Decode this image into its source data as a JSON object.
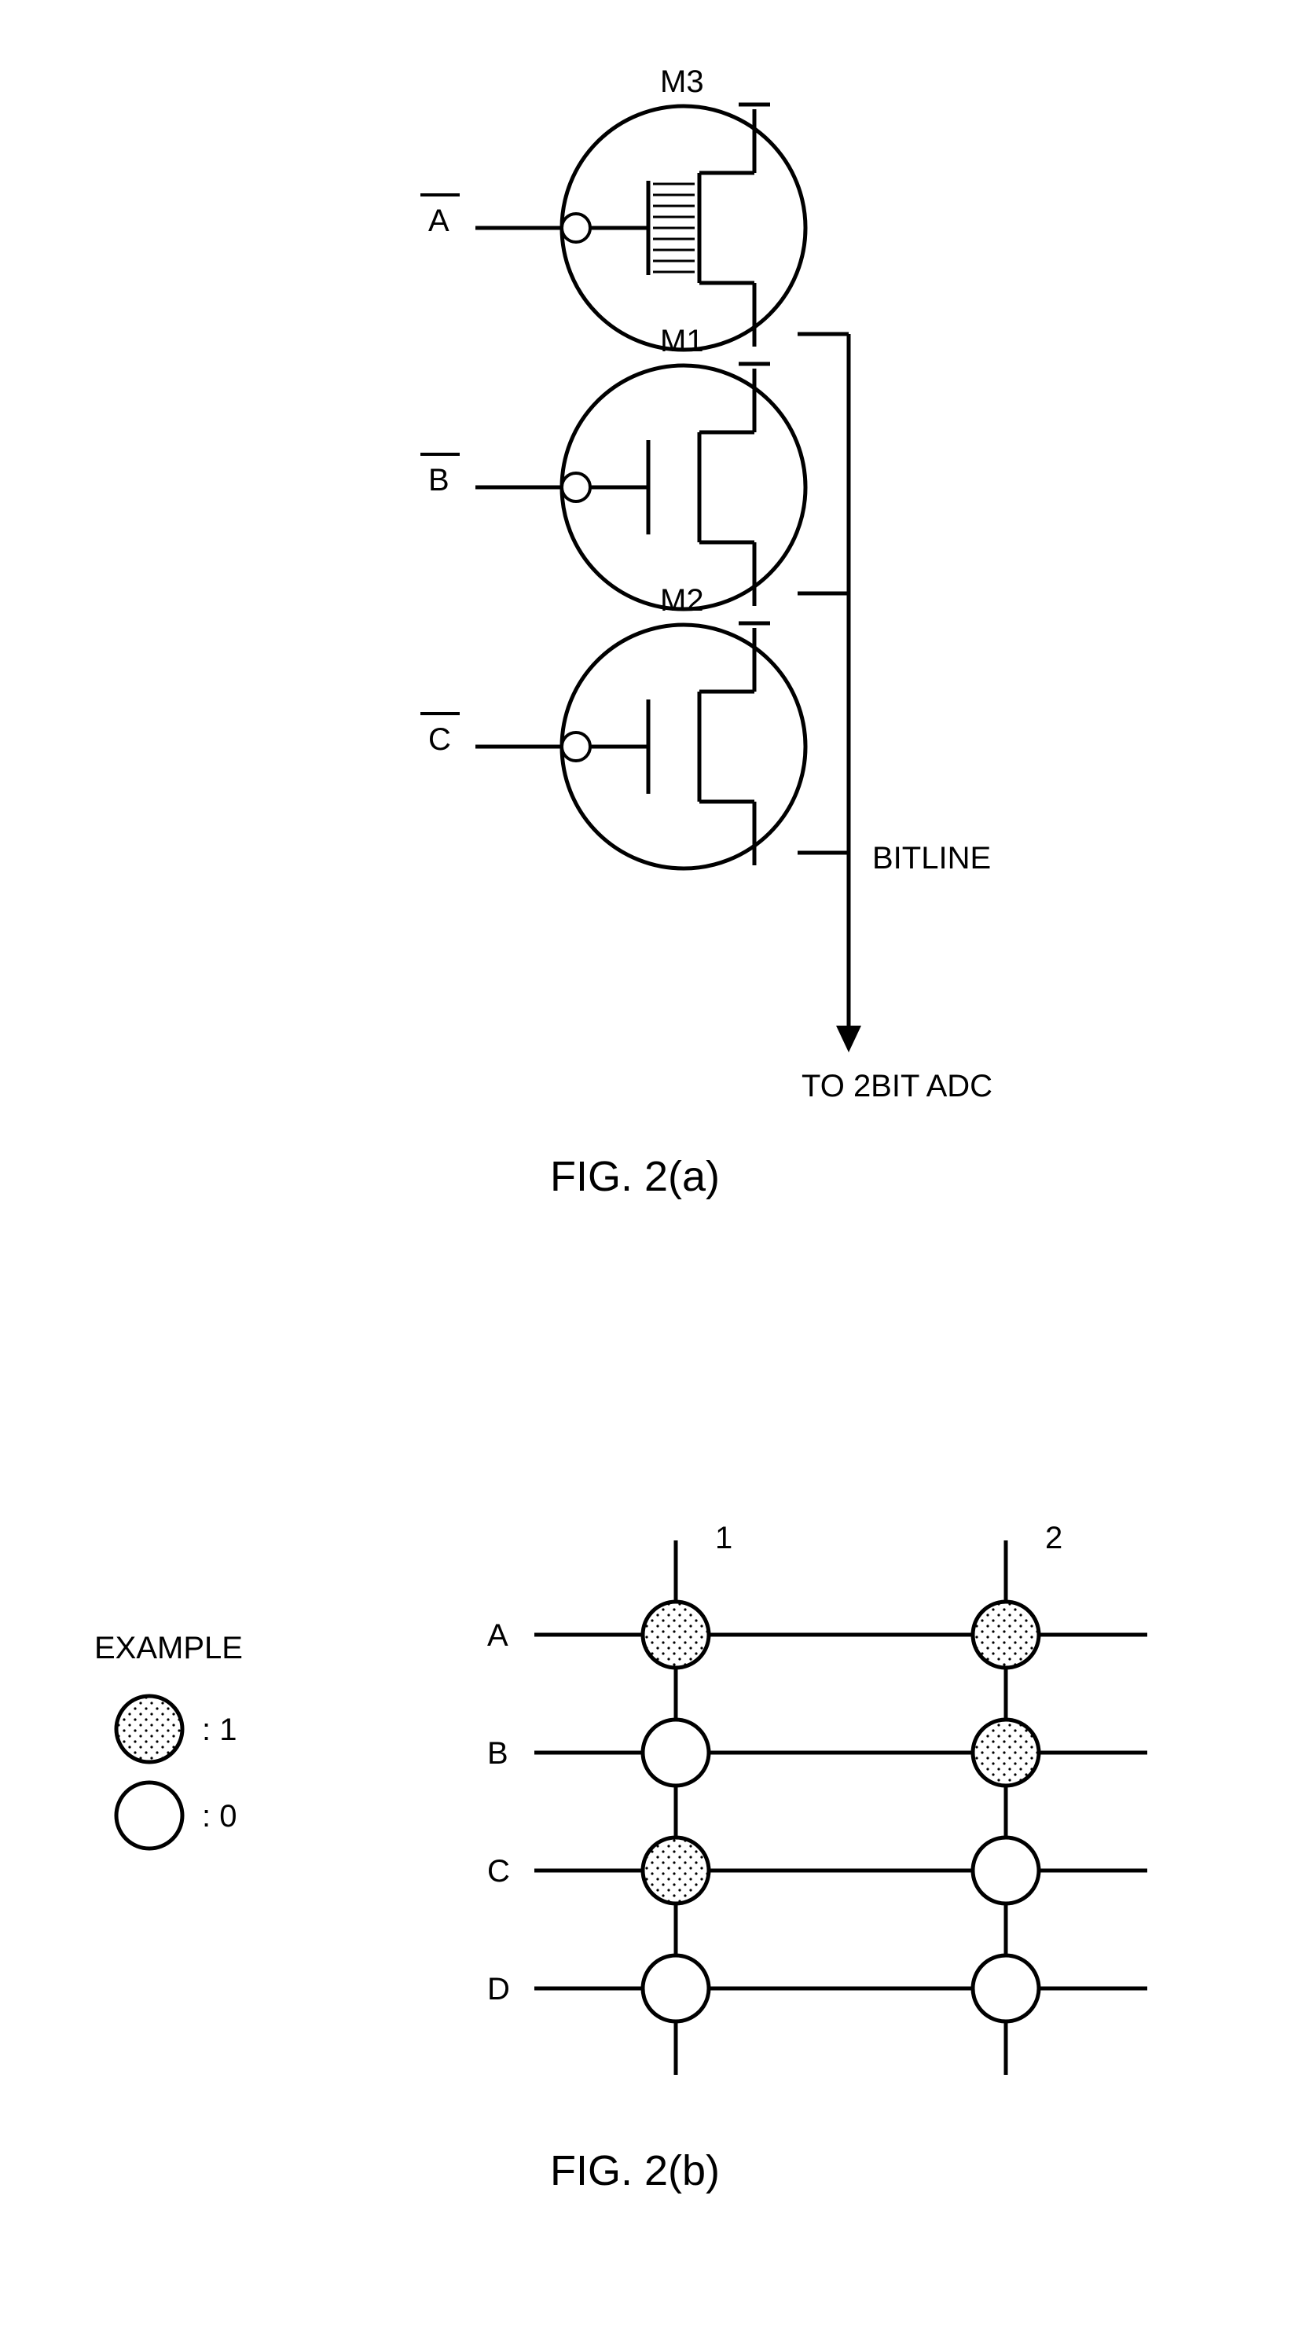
{
  "figA": {
    "transistors": [
      {
        "name": "M3",
        "input": "A",
        "hatched": true
      },
      {
        "name": "M1",
        "input": "B",
        "hatched": false
      },
      {
        "name": "M2",
        "input": "C",
        "hatched": false
      }
    ],
    "bitlineLabel": "BITLINE",
    "outputLabel": "TO 2BIT ADC",
    "caption": "FIG. 2(a)",
    "style": {
      "circleStroke": "#000000",
      "circleFill": "#ffffff",
      "lineColor": "#000000",
      "strokeWidth": 5,
      "circleRadius": 155,
      "fontSize": 40,
      "captionFontSize": 54
    }
  },
  "figB": {
    "rows": [
      "A",
      "B",
      "C",
      "D"
    ],
    "cols": [
      "1",
      "2"
    ],
    "grid": [
      [
        1,
        1
      ],
      [
        0,
        1
      ],
      [
        1,
        0
      ],
      [
        0,
        0
      ]
    ],
    "legendTitle": "EXAMPLE",
    "legend": [
      {
        "val": 1,
        "label": ": 1"
      },
      {
        "val": 0,
        "label": ": 0"
      }
    ],
    "caption": "FIG. 2(b)",
    "style": {
      "nodeStroke": "#000000",
      "nodeFillEmpty": "#ffffff",
      "nodeFillDotBg": "#ffffff",
      "dotColor": "#000000",
      "lineColor": "#000000",
      "strokeWidth": 5,
      "nodeRadius": 42,
      "fontSize": 40,
      "captionFontSize": 54
    }
  }
}
